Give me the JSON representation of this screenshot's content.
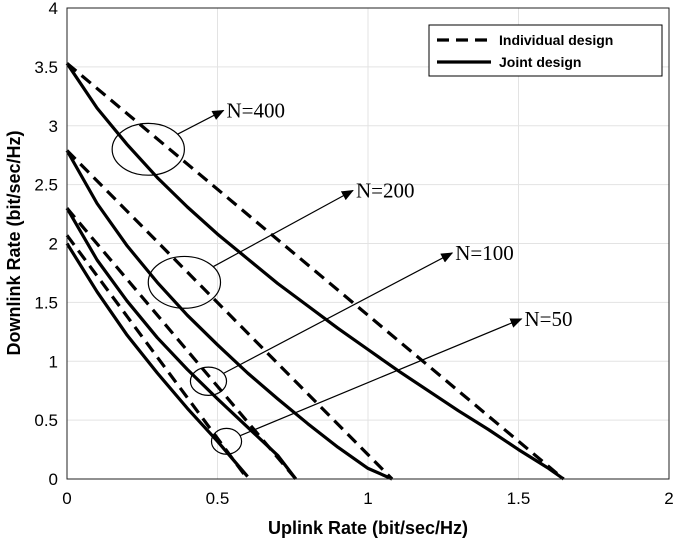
{
  "chart_data": {
    "type": "line",
    "xlabel": "Uplink Rate (bit/sec/Hz)",
    "ylabel": "Downlink Rate (bit/sec/Hz)",
    "xlim": [
      0,
      2
    ],
    "ylim": [
      0,
      4
    ],
    "xticks": [
      "0",
      "0.5",
      "1",
      "1.5",
      "2"
    ],
    "yticks": [
      "0",
      "0.5",
      "1",
      "1.5",
      "2",
      "2.5",
      "3",
      "3.5",
      "4"
    ],
    "grid": true,
    "legend_position": "top-right",
    "series": [
      {
        "name": "Individual design",
        "group": "N=400",
        "style": "dashed",
        "x": [
          0,
          1.65
        ],
        "y": [
          3.53,
          0
        ]
      },
      {
        "name": "Joint design",
        "group": "N=400",
        "style": "solid",
        "x": [
          0,
          0.1,
          0.2,
          0.3,
          0.4,
          0.5,
          0.6,
          0.7,
          0.8,
          0.9,
          1.0,
          1.1,
          1.2,
          1.3,
          1.4,
          1.5,
          1.6,
          1.65
        ],
        "y": [
          3.53,
          3.15,
          2.84,
          2.56,
          2.31,
          2.08,
          1.87,
          1.66,
          1.47,
          1.28,
          1.1,
          0.92,
          0.75,
          0.58,
          0.42,
          0.25,
          0.09,
          0
        ]
      },
      {
        "name": "Individual design",
        "group": "N=200",
        "style": "dashed",
        "x": [
          0,
          1.08
        ],
        "y": [
          2.79,
          0
        ]
      },
      {
        "name": "Joint design",
        "group": "N=200",
        "style": "solid",
        "x": [
          0,
          0.1,
          0.2,
          0.3,
          0.4,
          0.5,
          0.6,
          0.7,
          0.8,
          0.9,
          1.0,
          1.08
        ],
        "y": [
          2.79,
          2.34,
          1.98,
          1.67,
          1.39,
          1.14,
          0.9,
          0.68,
          0.47,
          0.27,
          0.09,
          0
        ]
      },
      {
        "name": "Individual design",
        "group": "N=100",
        "style": "dashed",
        "x": [
          0,
          0.76
        ],
        "y": [
          2.3,
          0
        ]
      },
      {
        "name": "Joint design",
        "group": "N=100",
        "style": "solid",
        "x": [
          0,
          0.1,
          0.2,
          0.3,
          0.4,
          0.5,
          0.6,
          0.7,
          0.76
        ],
        "y": [
          2.3,
          1.86,
          1.51,
          1.2,
          0.93,
          0.68,
          0.44,
          0.2,
          0
        ]
      },
      {
        "name": "Individual design",
        "group": "N=50",
        "style": "dashed",
        "x": [
          0,
          0.6
        ],
        "y": [
          2.07,
          0
        ]
      },
      {
        "name": "Joint design",
        "group": "N=50",
        "style": "solid",
        "x": [
          0,
          0.1,
          0.2,
          0.3,
          0.4,
          0.5,
          0.6
        ],
        "y": [
          2.0,
          1.59,
          1.22,
          0.9,
          0.6,
          0.32,
          0.02
        ]
      }
    ],
    "legend": [
      {
        "label": "Individual design",
        "style": "dashed"
      },
      {
        "label": "Joint design",
        "style": "solid"
      }
    ],
    "annotations": [
      {
        "text": "N=400",
        "ellipse_center": [
          0.27,
          2.8
        ],
        "ellipse_radii": [
          0.12,
          0.22
        ],
        "arrow_to": [
          0.52,
          3.13
        ]
      },
      {
        "text": "N=200",
        "ellipse_center": [
          0.39,
          1.67
        ],
        "ellipse_radii": [
          0.12,
          0.22
        ],
        "arrow_to": [
          0.95,
          2.45
        ]
      },
      {
        "text": "N=100",
        "ellipse_center": [
          0.47,
          0.83
        ],
        "ellipse_radii": [
          0.06,
          0.12
        ],
        "arrow_to": [
          1.28,
          1.92
        ]
      },
      {
        "text": "N=50",
        "ellipse_center": [
          0.53,
          0.32
        ],
        "ellipse_radii": [
          0.05,
          0.11
        ],
        "arrow_to": [
          1.51,
          1.36
        ]
      }
    ]
  }
}
